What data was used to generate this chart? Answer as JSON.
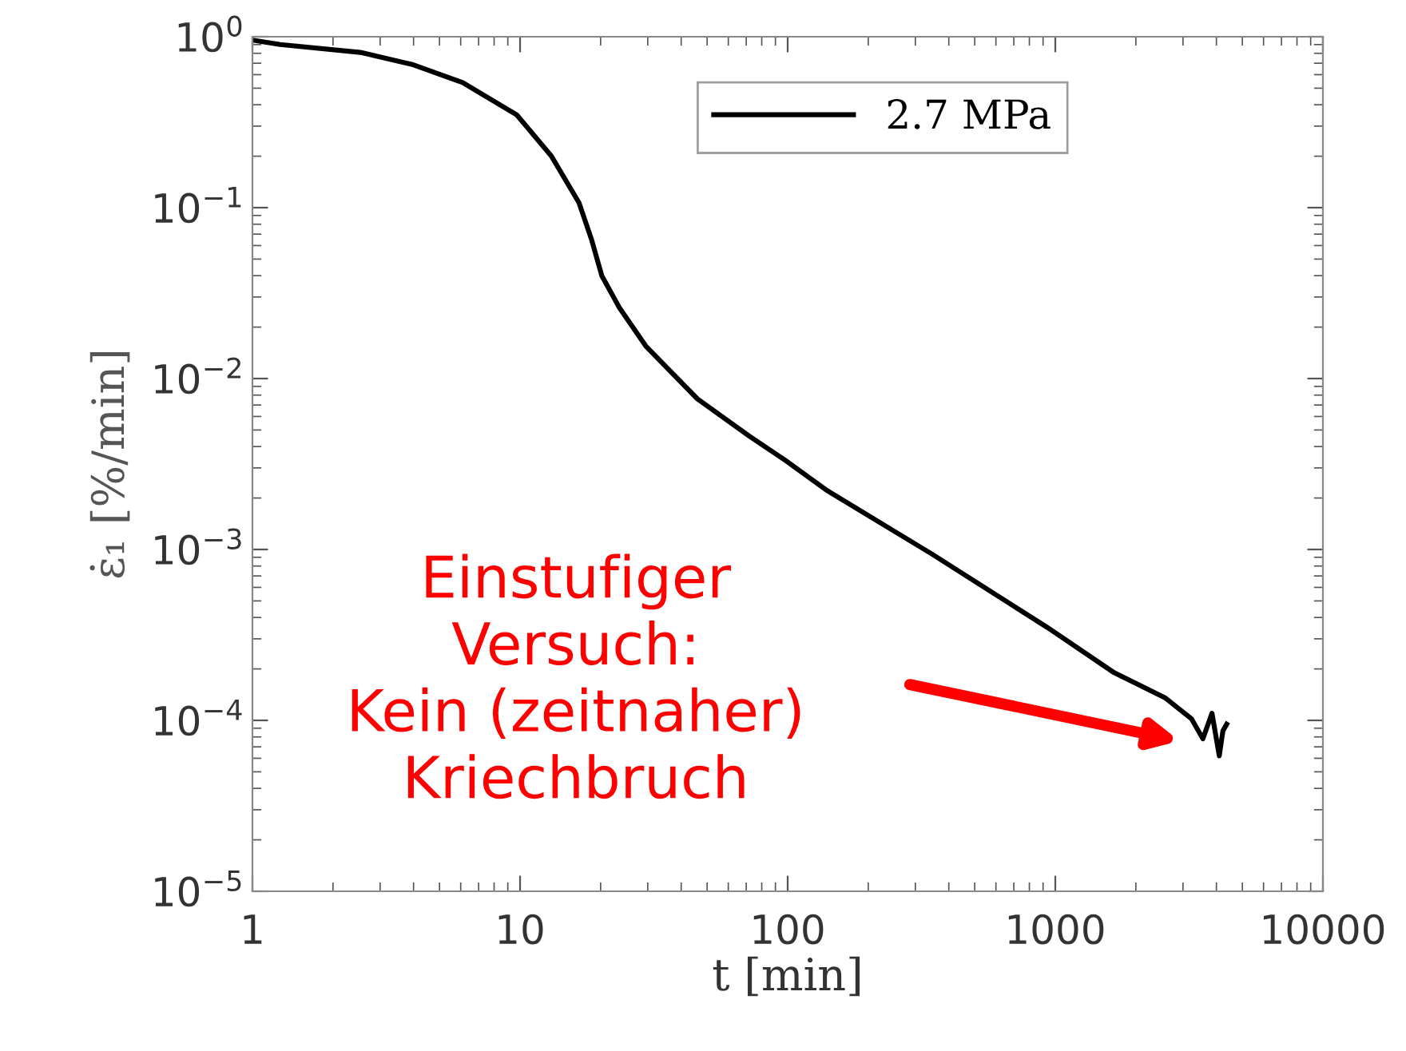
{
  "chart_data": {
    "type": "line",
    "xlabel": "t [min]",
    "ylabel": "ε̇₁ [%/min]",
    "log": "xy",
    "grid": false,
    "legend": "top right",
    "marker": "none",
    "line_style": "solid",
    "xlim": [
      1,
      10000
    ],
    "xticks": [
      1,
      10,
      100,
      1000,
      10000
    ],
    "ylim": [
      1e-05,
      1
    ],
    "yticks": [
      {
        "value": 1,
        "label": "10$^{0}$"
      },
      {
        "value": 0.1,
        "label": "10$^{−1}$"
      },
      {
        "value": 0.01,
        "label": "10$^{−2}$"
      },
      {
        "value": 0.001,
        "label": "10$^{−3}$"
      },
      {
        "value": 0.0001,
        "label": "10$^{−4}$"
      },
      {
        "value": 1e-05,
        "label": "10$^{−5}$"
      }
    ],
    "series": [
      {
        "name": "2.7 MPa",
        "color": "#000000",
        "x": [
          1,
          1.27,
          2.53,
          3.93,
          6.1,
          9.7,
          13.1,
          16.6,
          18.5,
          20.2,
          23.5,
          29.5,
          46,
          72,
          98.6,
          141,
          346,
          933,
          1660,
          2580,
          3230,
          3560,
          3850,
          4100,
          4230,
          4370
        ],
        "values": [
          0.955,
          0.9,
          0.81,
          0.69,
          0.54,
          0.35,
          0.2,
          0.107,
          0.065,
          0.04,
          0.026,
          0.0155,
          0.0076,
          0.0046,
          0.0033,
          0.0022,
          0.00094,
          0.00035,
          0.00019,
          0.000135,
          0.000102,
          7.8e-05,
          0.00011,
          6.2e-05,
          8.7e-05,
          9.5e-05
        ]
      }
    ],
    "annotations": [
      "Einstufiger\nVersuch:\nKein (zeitnaher)\nKriechbruch"
    ]
  }
}
